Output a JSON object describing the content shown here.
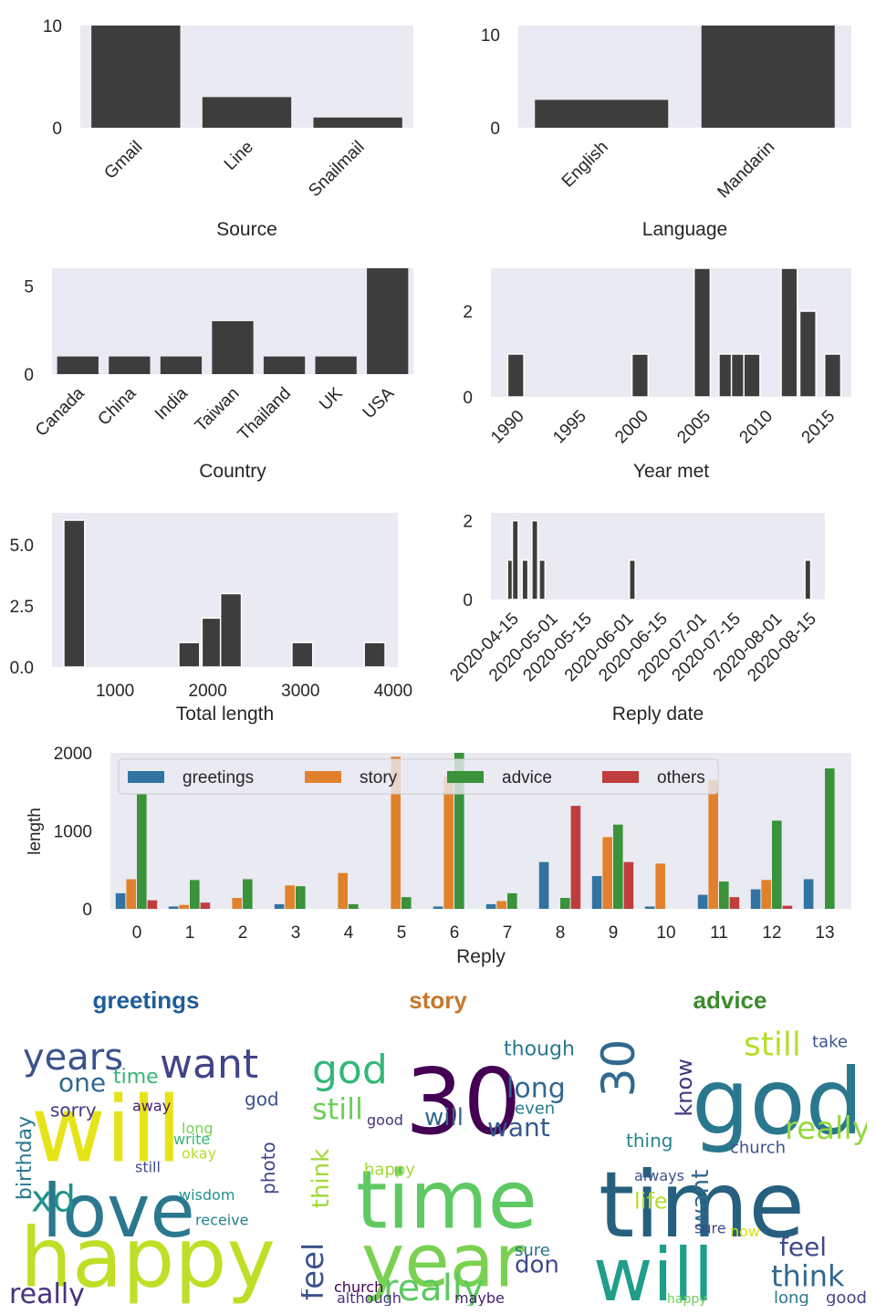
{
  "chart_data": [
    {
      "type": "bar",
      "xlabel": "Source",
      "ylabel": "",
      "categories": [
        "Gmail",
        "Line",
        "Snailmail"
      ],
      "values": [
        10,
        3,
        1
      ],
      "ylim": [
        0,
        10
      ],
      "yticks": [
        "0",
        "10"
      ],
      "grid": false,
      "bar_color": "#3d3d3d"
    },
    {
      "type": "bar",
      "xlabel": "Language",
      "ylabel": "",
      "categories": [
        "English",
        "Mandarin"
      ],
      "values": [
        3,
        11
      ],
      "ylim": [
        0,
        11
      ],
      "yticks": [
        "0",
        "10"
      ],
      "grid": false,
      "bar_color": "#3d3d3d"
    },
    {
      "type": "bar",
      "xlabel": "Country",
      "ylabel": "",
      "categories": [
        "Canada",
        "China",
        "India",
        "Taiwan",
        "Thailand",
        "UK",
        "USA"
      ],
      "values": [
        1,
        1,
        1,
        3,
        1,
        1,
        6
      ],
      "ylim": [
        0,
        6
      ],
      "yticks": [
        "0",
        "5"
      ],
      "grid": false,
      "bar_color": "#3d3d3d"
    },
    {
      "type": "bar",
      "xlabel": "Year met",
      "ylabel": "",
      "bins": [
        {
          "x": 1990,
          "value": 1
        },
        {
          "x": 2000,
          "value": 1
        },
        {
          "x": 2005,
          "value": 3
        },
        {
          "x": 2007,
          "value": 1
        },
        {
          "x": 2008,
          "value": 1
        },
        {
          "x": 2009,
          "value": 1
        },
        {
          "x": 2012,
          "value": 3
        },
        {
          "x": 2013.5,
          "value": 2
        },
        {
          "x": 2015.5,
          "value": 1
        }
      ],
      "xlim": [
        1988,
        2017
      ],
      "xticks": [
        "1990",
        "1995",
        "2000",
        "2005",
        "2010",
        "2015"
      ],
      "ylim": [
        0,
        3
      ],
      "yticks": [
        "0",
        "2"
      ],
      "grid": false,
      "bar_color": "#3d3d3d"
    },
    {
      "type": "bar",
      "xlabel": "Total length",
      "ylabel": "",
      "bins": [
        {
          "x": 560,
          "value": 6
        },
        {
          "x": 1800,
          "value": 1
        },
        {
          "x": 2050,
          "value": 2
        },
        {
          "x": 2250,
          "value": 3
        },
        {
          "x": 3020,
          "value": 1
        },
        {
          "x": 3800,
          "value": 1
        }
      ],
      "xlim": [
        320,
        4050
      ],
      "xticks": [
        "1000",
        "2000",
        "3000",
        "4000"
      ],
      "ylim": [
        0,
        6.3
      ],
      "yticks": [
        "0.0",
        "2.5",
        "5.0"
      ],
      "grid": false,
      "bar_color": "#3d3d3d"
    },
    {
      "type": "bar",
      "xlabel": "Reply date",
      "ylabel": "",
      "bins": [
        {
          "x": "2020-04-15",
          "value": 1
        },
        {
          "x": "2020-04-17",
          "value": 2
        },
        {
          "x": "2020-04-21",
          "value": 1
        },
        {
          "x": "2020-04-25",
          "value": 2
        },
        {
          "x": "2020-04-28",
          "value": 1
        },
        {
          "x": "2020-06-04",
          "value": 1
        },
        {
          "x": "2020-08-15",
          "value": 1
        }
      ],
      "xlim": [
        "2020-04-07",
        "2020-08-22"
      ],
      "xticks": [
        "2020-04-15",
        "2020-05-01",
        "2020-05-15",
        "2020-06-01",
        "2020-06-15",
        "2020-07-01",
        "2020-07-15",
        "2020-08-01",
        "2020-08-15"
      ],
      "ylim": [
        0,
        2.2
      ],
      "yticks": [
        "0",
        "2"
      ],
      "grid": false,
      "bar_color": "#3d3d3d"
    },
    {
      "type": "bar",
      "xlabel": "Reply",
      "ylabel": "length",
      "categories": [
        "0",
        "1",
        "2",
        "3",
        "4",
        "5",
        "6",
        "7",
        "8",
        "9",
        "10",
        "11",
        "12",
        "13"
      ],
      "series": [
        {
          "name": "greetings",
          "color": "#3274a1",
          "values": [
            200,
            30,
            0,
            60,
            0,
            0,
            30,
            60,
            600,
            420,
            30,
            180,
            250,
            380
          ]
        },
        {
          "name": "story",
          "color": "#e1812c",
          "values": [
            380,
            50,
            140,
            300,
            460,
            1950,
            1700,
            100,
            0,
            920,
            580,
            1650,
            370,
            0
          ]
        },
        {
          "name": "advice",
          "color": "#3a923a",
          "values": [
            1470,
            370,
            380,
            290,
            60,
            150,
            2000,
            200,
            140,
            1080,
            0,
            350,
            1130,
            1800
          ]
        },
        {
          "name": "others",
          "color": "#c03d3e",
          "values": [
            110,
            80,
            0,
            0,
            0,
            0,
            0,
            0,
            1320,
            600,
            0,
            150,
            40,
            0
          ]
        }
      ],
      "ylim": [
        0,
        2000
      ],
      "yticks": [
        "0",
        "1000",
        "2000"
      ],
      "legend": "top",
      "grid": false
    }
  ],
  "wordclouds": [
    {
      "title": "greetings",
      "title_color": "#1f5c99",
      "words": [
        {
          "text": "will",
          "size": 100,
          "color": "#e6e419"
        },
        {
          "text": "happy",
          "size": 90,
          "color": "#bddf26"
        },
        {
          "text": "love",
          "size": 80,
          "color": "#2a788e"
        },
        {
          "text": "years",
          "size": 40,
          "color": "#3b528b"
        },
        {
          "text": "want",
          "size": 44,
          "color": "#414487"
        },
        {
          "text": "xd",
          "size": 40,
          "color": "#21918c"
        },
        {
          "text": "one",
          "size": 28,
          "color": "#31688e"
        },
        {
          "text": "time",
          "size": 22,
          "color": "#35b779"
        },
        {
          "text": "birthday",
          "size": 22,
          "color": "#2a788e"
        },
        {
          "text": "really",
          "size": 30,
          "color": "#46327e"
        },
        {
          "text": "photo",
          "size": 20,
          "color": "#414487"
        },
        {
          "text": "god",
          "size": 20,
          "color": "#3b528b"
        },
        {
          "text": "wisdom",
          "size": 16,
          "color": "#21918c"
        },
        {
          "text": "sorry",
          "size": 20,
          "color": "#443983"
        },
        {
          "text": "receive",
          "size": 16,
          "color": "#27808e"
        },
        {
          "text": "still",
          "size": 16,
          "color": "#3e4989"
        },
        {
          "text": "okay",
          "size": 16,
          "color": "#b5de2b"
        },
        {
          "text": "write",
          "size": 16,
          "color": "#35b779"
        },
        {
          "text": "long",
          "size": 16,
          "color": "#7ad151"
        },
        {
          "text": "away",
          "size": 16,
          "color": "#481a6c"
        }
      ]
    },
    {
      "title": "story",
      "title_color": "#c8762a",
      "words": [
        {
          "text": "30",
          "size": 100,
          "color": "#440154"
        },
        {
          "text": "time",
          "size": 88,
          "color": "#5ec962"
        },
        {
          "text": "year",
          "size": 80,
          "color": "#7ad151"
        },
        {
          "text": "god",
          "size": 44,
          "color": "#35b779"
        },
        {
          "text": "still",
          "size": 32,
          "color": "#6ece58"
        },
        {
          "text": "feel",
          "size": 34,
          "color": "#3b528b"
        },
        {
          "text": "think",
          "size": 26,
          "color": "#a0da39"
        },
        {
          "text": "really",
          "size": 40,
          "color": "#5ec962"
        },
        {
          "text": "long",
          "size": 30,
          "color": "#31688e"
        },
        {
          "text": "want",
          "size": 28,
          "color": "#38598c"
        },
        {
          "text": "thought",
          "size": 22,
          "color": "#2a788e"
        },
        {
          "text": "will",
          "size": 26,
          "color": "#31688e"
        },
        {
          "text": "don",
          "size": 26,
          "color": "#3e4989"
        },
        {
          "text": "even",
          "size": 18,
          "color": "#287c8e"
        },
        {
          "text": "happy",
          "size": 18,
          "color": "#a0da39"
        },
        {
          "text": "maybe",
          "size": 16,
          "color": "#482173"
        },
        {
          "text": "although",
          "size": 16,
          "color": "#46327e"
        },
        {
          "text": "church",
          "size": 16,
          "color": "#440154"
        },
        {
          "text": "sure",
          "size": 18,
          "color": "#2c728e"
        },
        {
          "text": "good",
          "size": 16,
          "color": "#46327e"
        }
      ]
    },
    {
      "title": "advice",
      "title_color": "#3d8a2f",
      "words": [
        {
          "text": "god",
          "size": 100,
          "color": "#2a788e"
        },
        {
          "text": "time",
          "size": 100,
          "color": "#26607e"
        },
        {
          "text": "will",
          "size": 80,
          "color": "#1f9e89"
        },
        {
          "text": "30",
          "size": 50,
          "color": "#31688e"
        },
        {
          "text": "still",
          "size": 36,
          "color": "#b5de2b"
        },
        {
          "text": "really",
          "size": 34,
          "color": "#95d840"
        },
        {
          "text": "think",
          "size": 32,
          "color": "#31688e"
        },
        {
          "text": "feel",
          "size": 28,
          "color": "#3e4989"
        },
        {
          "text": "know",
          "size": 24,
          "color": "#453781"
        },
        {
          "text": "want",
          "size": 26,
          "color": "#31688e"
        },
        {
          "text": "life",
          "size": 24,
          "color": "#b5de2b"
        },
        {
          "text": "church",
          "size": 18,
          "color": "#3b528b"
        },
        {
          "text": "thing",
          "size": 20,
          "color": "#25848e"
        },
        {
          "text": "take",
          "size": 18,
          "color": "#3b528b"
        },
        {
          "text": "long",
          "size": 18,
          "color": "#2a788e"
        },
        {
          "text": "good",
          "size": 18,
          "color": "#414487"
        },
        {
          "text": "always",
          "size": 16,
          "color": "#3b528b"
        },
        {
          "text": "happy",
          "size": 14,
          "color": "#6ece58"
        },
        {
          "text": "now",
          "size": 16,
          "color": "#d2e21b"
        },
        {
          "text": "sure",
          "size": 16,
          "color": "#3e4989"
        }
      ]
    }
  ]
}
